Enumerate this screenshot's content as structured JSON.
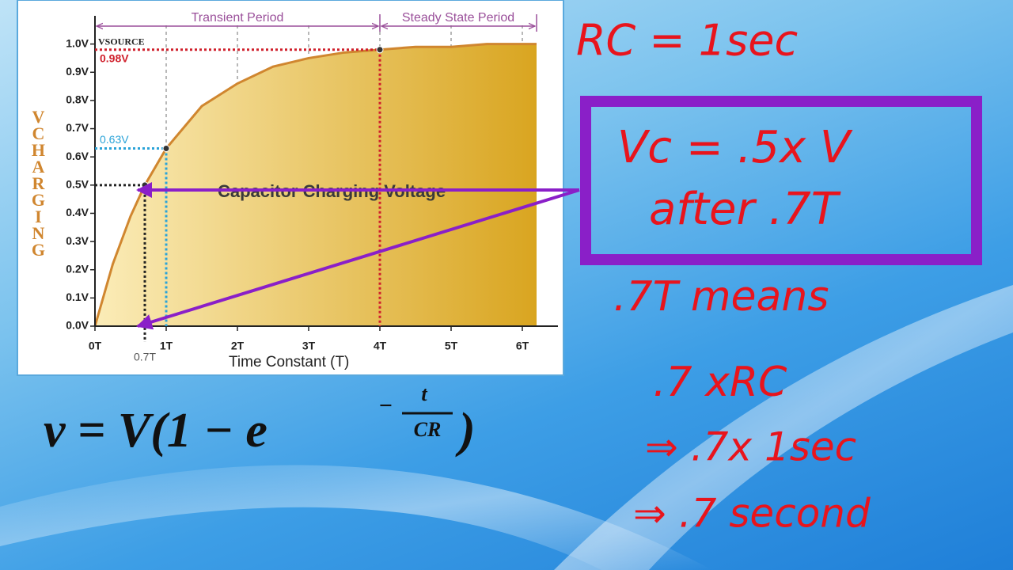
{
  "chart_data": {
    "type": "area",
    "x": [
      0,
      0.25,
      0.5,
      0.7,
      1,
      1.5,
      2,
      2.5,
      3,
      3.5,
      4,
      4.5,
      5,
      5.5,
      6,
      6.2
    ],
    "values": [
      0,
      0.22,
      0.39,
      0.5,
      0.63,
      0.78,
      0.86,
      0.92,
      0.95,
      0.97,
      0.98,
      0.99,
      0.99,
      1.0,
      1.0,
      1.0
    ],
    "color": "#d0862f",
    "fill_colors": [
      "#fbecb8",
      "#d9a520"
    ],
    "xlim": [
      0,
      6.5
    ],
    "ylim": [
      0,
      1.1
    ],
    "xticks": [
      {
        "value": 0,
        "label": "0T"
      },
      {
        "value": 1,
        "label": "1T"
      },
      {
        "value": 2,
        "label": "2T"
      },
      {
        "value": 3,
        "label": "3T"
      },
      {
        "value": 4,
        "label": "4T"
      },
      {
        "value": 5,
        "label": "5T"
      },
      {
        "value": 6,
        "label": "6T"
      }
    ],
    "yticks": [
      {
        "value": 0,
        "label": "0.0V"
      },
      {
        "value": 0.1,
        "label": "0.1V"
      },
      {
        "value": 0.2,
        "label": "0.2V"
      },
      {
        "value": 0.3,
        "label": "0.3V"
      },
      {
        "value": 0.4,
        "label": "0.4V"
      },
      {
        "value": 0.5,
        "label": "0.5V"
      },
      {
        "value": 0.6,
        "label": "0.6V"
      },
      {
        "value": 0.7,
        "label": "0.7V"
      },
      {
        "value": 0.8,
        "label": "0.8V"
      },
      {
        "value": 0.9,
        "label": "0.9V"
      },
      {
        "value": 1.0,
        "label": "1.0V"
      }
    ],
    "grid": true,
    "x_label": "Time Constant (T)",
    "y_label": "VCHARGING",
    "source_label": "VSOURCE",
    "annotation": "Capacitor Charging Voltage",
    "markers": [
      {
        "x": 0.7,
        "y": 0.5,
        "x_label": "0.7T",
        "color": "#222222"
      },
      {
        "x": 1,
        "y": 0.63,
        "y_label": "0.63V",
        "color": "#2aa3d8"
      },
      {
        "x": 4,
        "y": 0.98,
        "y_label": "0.98V",
        "color": "#d0202c"
      }
    ],
    "periods": [
      {
        "label": "Transient Period",
        "from": 0,
        "to": 4
      },
      {
        "label": "Steady State Period",
        "from": 4,
        "to": 6.2
      }
    ]
  },
  "formula": {
    "lhs": "v = V(1 − e",
    "sign": "−",
    "numerator": "t",
    "denominator": "CR",
    "close": ")"
  },
  "notes": {
    "rc": "RC = 1sec",
    "box": [
      "Vc = .5x V",
      "after .7T"
    ],
    "steps": [
      ".7T means",
      ".7 xRC",
      "⇒ .7x 1sec",
      "⇒ .7 second"
    ]
  }
}
